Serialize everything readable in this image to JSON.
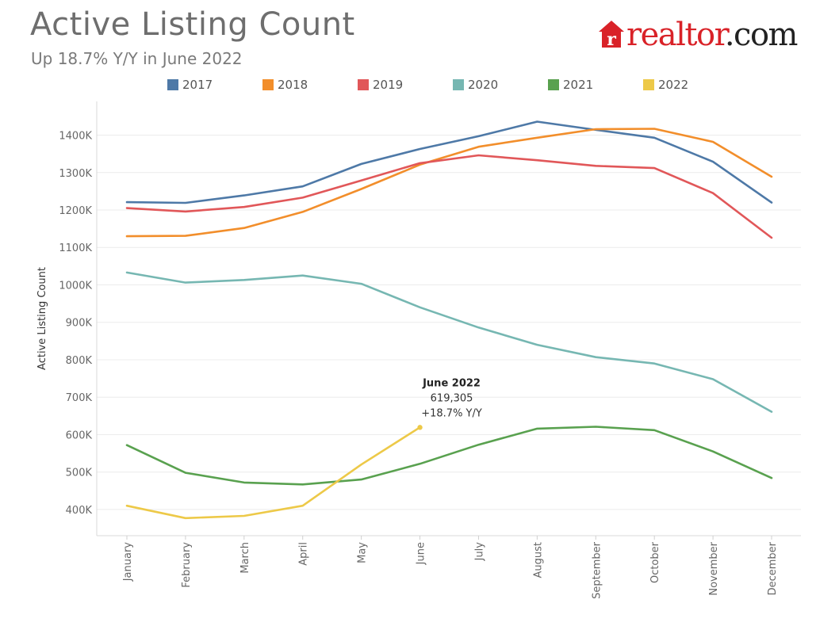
{
  "header": {
    "title": "Active Listing Count",
    "subtitle": "Up 18.7% Y/Y in June 2022"
  },
  "logo": {
    "text_main": "realtor",
    "text_dot": ".com",
    "icon": "realtor-r-house-icon",
    "brand_color": "#d92228"
  },
  "chart_data": {
    "type": "line",
    "title": "Active Listing Count",
    "subtitle": "Up 18.7% Y/Y in June 2022",
    "ylabel": "Active Listing Count",
    "xlabel": "",
    "x": [
      "January",
      "February",
      "March",
      "April",
      "May",
      "June",
      "July",
      "August",
      "September",
      "October",
      "November",
      "December"
    ],
    "ylim": [
      330000,
      1490000
    ],
    "yticks": [
      400000,
      500000,
      600000,
      700000,
      800000,
      900000,
      1000000,
      1100000,
      1200000,
      1300000,
      1400000
    ],
    "ytick_labels": [
      "400K",
      "500K",
      "600K",
      "700K",
      "800K",
      "900K",
      "1000K",
      "1100K",
      "1200K",
      "1300K",
      "1400K"
    ],
    "grid": true,
    "legend_position": "top",
    "series": [
      {
        "name": "2017",
        "color": "#4e79a7",
        "values": [
          1221000,
          1219000,
          1239000,
          1263000,
          1323000,
          1363000,
          1397000,
          1436000,
          1414000,
          1393000,
          1329000,
          1220000
        ]
      },
      {
        "name": "2018",
        "color": "#f28e2b",
        "values": [
          1130000,
          1131000,
          1152000,
          1195000,
          1256000,
          1321000,
          1369000,
          1393000,
          1416000,
          1417000,
          1382000,
          1289000
        ]
      },
      {
        "name": "2019",
        "color": "#e15759",
        "values": [
          1205000,
          1196000,
          1208000,
          1233000,
          1279000,
          1325000,
          1346000,
          1333000,
          1318000,
          1312000,
          1245000,
          1126000
        ]
      },
      {
        "name": "2020",
        "color": "#76b7b2",
        "values": [
          1033000,
          1006000,
          1013000,
          1025000,
          1003000,
          940000,
          886000,
          840000,
          807000,
          790000,
          748000,
          661000
        ]
      },
      {
        "name": "2021",
        "color": "#59a14f",
        "values": [
          572000,
          498000,
          472000,
          467000,
          480000,
          522000,
          573000,
          616000,
          621000,
          612000,
          555000,
          484000
        ]
      },
      {
        "name": "2022",
        "color": "#edc948",
        "values": [
          410000,
          377000,
          383000,
          410000,
          520000,
          619305,
          null,
          null,
          null,
          null,
          null,
          null
        ]
      }
    ],
    "annotation": {
      "series": "2022",
      "x": "June",
      "y": 619305,
      "lines": [
        "June 2022",
        "619,305",
        "+18.7% Y/Y"
      ]
    }
  }
}
